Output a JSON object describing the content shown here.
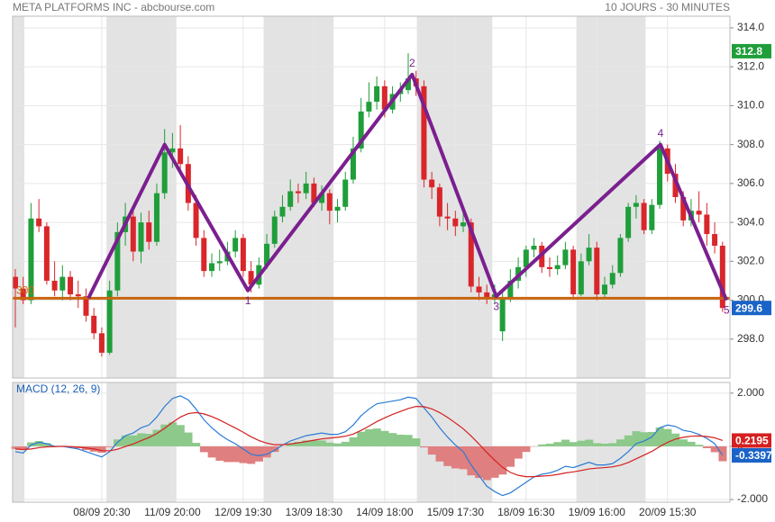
{
  "header": {
    "title": "META PLATFORMS INC - abcbourse.com",
    "period": "10 JOURS - 30 MINUTES"
  },
  "chart_data": [
    {
      "type": "candlestick",
      "up_color": "#1f9e3a",
      "down_color": "#d9262b",
      "grid": true,
      "categories": [
        null,
        null,
        null,
        null,
        null,
        null,
        null,
        null,
        null,
        null,
        null,
        "08/09 20:30",
        null,
        null,
        null,
        null,
        null,
        null,
        null,
        null,
        "11/09 20:00",
        null,
        null,
        null,
        null,
        null,
        null,
        null,
        null,
        "12/09 19:30",
        null,
        null,
        null,
        null,
        null,
        null,
        null,
        null,
        "13/09 18:30",
        null,
        null,
        null,
        null,
        null,
        null,
        null,
        null,
        "14/09 18:00",
        null,
        null,
        null,
        null,
        null,
        null,
        null,
        null,
        "15/09 17:30",
        null,
        null,
        null,
        null,
        null,
        null,
        null,
        null,
        "18/09 16:30",
        null,
        null,
        null,
        null,
        null,
        null,
        null,
        null,
        "19/09 16:00",
        null,
        null,
        null,
        null,
        null,
        null,
        null,
        null,
        "20/09 15:30",
        null,
        null,
        null,
        null,
        null,
        null,
        null
      ],
      "ohlc": [
        [
          301.2,
          301.6,
          298.6,
          300.6
        ],
        [
          300.6,
          301.2,
          299.8,
          300.0
        ],
        [
          300.0,
          305.0,
          299.8,
          304.2
        ],
        [
          304.2,
          305.2,
          303.5,
          303.8
        ],
        [
          303.8,
          304.0,
          300.8,
          301.0
        ],
        [
          301.0,
          302.0,
          300.2,
          300.5
        ],
        [
          300.5,
          301.8,
          300.0,
          301.2
        ],
        [
          301.2,
          301.5,
          300.0,
          300.3
        ],
        [
          300.3,
          301.0,
          299.6,
          300.2
        ],
        [
          300.2,
          300.6,
          298.9,
          299.2
        ],
        [
          299.2,
          299.6,
          298.0,
          298.3
        ],
        [
          298.3,
          298.6,
          297.1,
          297.3
        ],
        [
          297.3,
          301.0,
          297.2,
          300.5
        ],
        [
          300.5,
          304.0,
          300.2,
          303.5
        ],
        [
          303.5,
          305.0,
          302.8,
          304.3
        ],
        [
          304.3,
          304.8,
          302.0,
          302.5
        ],
        [
          302.5,
          304.5,
          301.9,
          304.0
        ],
        [
          304.0,
          304.6,
          302.6,
          303.0
        ],
        [
          303.0,
          306.0,
          302.8,
          305.5
        ],
        [
          305.5,
          308.8,
          305.2,
          307.6
        ],
        [
          307.6,
          308.6,
          306.8,
          307.8
        ],
        [
          307.8,
          309.0,
          306.6,
          307.0
        ],
        [
          307.0,
          307.4,
          304.6,
          305.0
        ],
        [
          305.0,
          305.4,
          302.8,
          303.2
        ],
        [
          303.2,
          303.6,
          301.2,
          301.5
        ],
        [
          301.5,
          302.4,
          301.2,
          301.9
        ],
        [
          301.9,
          302.6,
          301.5,
          302.0
        ],
        [
          302.0,
          303.0,
          301.8,
          302.5
        ],
        [
          302.5,
          303.6,
          302.2,
          303.2
        ],
        [
          303.2,
          303.4,
          301.2,
          301.5
        ],
        [
          301.5,
          302.0,
          300.4,
          300.8
        ],
        [
          300.8,
          302.2,
          300.6,
          301.8
        ],
        [
          301.8,
          303.4,
          301.6,
          302.9
        ],
        [
          302.9,
          304.6,
          302.7,
          304.3
        ],
        [
          304.3,
          305.4,
          304.0,
          304.8
        ],
        [
          304.8,
          306.2,
          304.6,
          305.6
        ],
        [
          305.6,
          306.0,
          305.0,
          305.5
        ],
        [
          305.5,
          306.6,
          305.2,
          306.0
        ],
        [
          306.0,
          306.3,
          304.8,
          305.0
        ],
        [
          305.0,
          305.9,
          304.6,
          305.5
        ],
        [
          305.5,
          305.7,
          303.9,
          304.6
        ],
        [
          304.6,
          305.2,
          304.0,
          304.8
        ],
        [
          304.8,
          306.6,
          304.6,
          306.2
        ],
        [
          306.2,
          308.4,
          306.0,
          307.8
        ],
        [
          307.8,
          310.4,
          307.6,
          309.7
        ],
        [
          309.7,
          311.2,
          309.4,
          310.2
        ],
        [
          310.2,
          311.5,
          309.8,
          311.0
        ],
        [
          311.0,
          311.3,
          309.4,
          309.8
        ],
        [
          309.8,
          311.0,
          309.6,
          310.6
        ],
        [
          310.6,
          311.2,
          310.2,
          310.8
        ],
        [
          310.8,
          312.7,
          310.6,
          311.4
        ],
        [
          311.4,
          311.8,
          310.5,
          311.0
        ],
        [
          311.0,
          311.3,
          305.8,
          306.2
        ],
        [
          306.2,
          306.6,
          305.2,
          305.8
        ],
        [
          305.8,
          306.0,
          303.8,
          304.3
        ],
        [
          304.3,
          305.0,
          303.6,
          304.2
        ],
        [
          304.2,
          304.6,
          303.3,
          303.8
        ],
        [
          303.8,
          304.6,
          303.5,
          304.0
        ],
        [
          304.0,
          304.2,
          300.4,
          300.7
        ],
        [
          300.7,
          301.2,
          300.0,
          300.4
        ],
        [
          300.4,
          300.8,
          299.8,
          300.1
        ],
        [
          300.1,
          300.8,
          299.8,
          300.3
        ],
        [
          298.4,
          300.4,
          297.9,
          300.1
        ],
        [
          300.1,
          301.6,
          299.9,
          301.0
        ],
        [
          301.0,
          302.2,
          300.6,
          301.7
        ],
        [
          301.7,
          302.8,
          301.2,
          302.6
        ],
        [
          302.6,
          303.2,
          302.2,
          302.8
        ],
        [
          302.8,
          303.0,
          301.4,
          301.7
        ],
        [
          301.7,
          302.2,
          301.2,
          301.6
        ],
        [
          301.6,
          302.3,
          301.3,
          301.8
        ],
        [
          301.8,
          303.0,
          301.6,
          302.6
        ],
        [
          302.6,
          302.8,
          300.1,
          300.3
        ],
        [
          300.3,
          302.4,
          300.2,
          302.0
        ],
        [
          302.0,
          303.4,
          301.8,
          302.7
        ],
        [
          302.7,
          303.0,
          300.0,
          300.3
        ],
        [
          300.3,
          301.2,
          300.1,
          300.8
        ],
        [
          300.8,
          301.8,
          300.6,
          301.4
        ],
        [
          301.4,
          303.4,
          301.2,
          303.2
        ],
        [
          303.2,
          305.0,
          303.0,
          304.8
        ],
        [
          304.8,
          305.4,
          304.2,
          305.0
        ],
        [
          305.0,
          305.2,
          303.4,
          303.6
        ],
        [
          303.6,
          305.2,
          303.4,
          304.9
        ],
        [
          304.9,
          308.2,
          304.7,
          307.8
        ],
        [
          307.8,
          308.0,
          306.1,
          306.5
        ],
        [
          306.5,
          307.0,
          305.0,
          305.3
        ],
        [
          305.3,
          305.6,
          303.8,
          304.1
        ],
        [
          304.1,
          305.2,
          303.8,
          304.6
        ],
        [
          304.6,
          305.6,
          304.0,
          304.4
        ],
        [
          304.4,
          305.0,
          302.8,
          303.4
        ],
        [
          303.4,
          304.0,
          302.4,
          302.8
        ],
        [
          302.8,
          303.0,
          299.4,
          299.6
        ]
      ],
      "ylim": [
        296,
        314.6
      ],
      "yticks": [
        {
          "value": 298,
          "label": "298.0"
        },
        {
          "value": 300,
          "label": "300.0"
        },
        {
          "value": 302,
          "label": "302.0"
        },
        {
          "value": 304,
          "label": "304.0"
        },
        {
          "value": 306,
          "label": "306.0"
        },
        {
          "value": 308,
          "label": "308.0"
        },
        {
          "value": 310,
          "label": "310.0"
        },
        {
          "value": 312,
          "label": "312.0"
        },
        {
          "value": 314,
          "label": "314.0"
        }
      ],
      "support": {
        "value": 300.1,
        "label": "300",
        "color": "#c8650f"
      },
      "pattern": {
        "color": "#7b1f8f",
        "points": [
          {
            "x": 9.3,
            "y": 300.1
          },
          {
            "x": 19.0,
            "y": 308.0
          },
          {
            "x": 29.6,
            "y": 300.5,
            "label": "1"
          },
          {
            "x": 50.5,
            "y": 311.6,
            "label": "2"
          },
          {
            "x": 61.2,
            "y": 300.2,
            "label": "3"
          },
          {
            "x": 82.1,
            "y": 308.0,
            "label": "4"
          },
          {
            "x": 90.5,
            "y": 300.0,
            "label": "5"
          }
        ]
      },
      "markers": [
        {
          "value": 312.8,
          "color": "#1f9e3a"
        },
        {
          "value": 299.6,
          "color": "#1a63c7"
        }
      ]
    },
    {
      "type": "macd",
      "title": "MACD (12, 26, 9)",
      "ylim": [
        -2.1,
        2.4
      ],
      "yticks": [
        {
          "value": -2,
          "label": "-2.000"
        },
        0,
        {
          "value": 2,
          "label": "2.000"
        }
      ],
      "series": [
        {
          "color": "#2a7bd6",
          "values": [
            -0.2,
            -0.25,
            0.05,
            0.15,
            0.1,
            0.0,
            0.0,
            -0.05,
            -0.1,
            -0.2,
            -0.3,
            -0.4,
            -0.2,
            0.15,
            0.4,
            0.5,
            0.7,
            0.8,
            1.1,
            1.5,
            1.8,
            1.9,
            1.75,
            1.4,
            1.0,
            0.7,
            0.45,
            0.25,
            0.1,
            -0.1,
            -0.3,
            -0.35,
            -0.3,
            -0.15,
            0.05,
            0.2,
            0.3,
            0.4,
            0.45,
            0.5,
            0.45,
            0.45,
            0.55,
            0.8,
            1.15,
            1.4,
            1.6,
            1.65,
            1.7,
            1.75,
            1.85,
            1.8,
            1.45,
            1.1,
            0.7,
            0.35,
            0.05,
            -0.2,
            -0.7,
            -1.1,
            -1.5,
            -1.7,
            -1.85,
            -1.75,
            -1.55,
            -1.35,
            -1.15,
            -1.05,
            -1.0,
            -0.9,
            -0.75,
            -0.8,
            -0.7,
            -0.6,
            -0.7,
            -0.7,
            -0.65,
            -0.45,
            -0.2,
            0.1,
            0.2,
            0.35,
            0.7,
            0.8,
            0.75,
            0.6,
            0.55,
            0.45,
            0.3,
            0.1,
            -0.3397
          ]
        },
        {
          "color": "#d42020",
          "values": [
            -0.1,
            -0.12,
            -0.1,
            -0.05,
            -0.02,
            -0.01,
            0.0,
            -0.01,
            -0.03,
            -0.06,
            -0.1,
            -0.16,
            -0.17,
            -0.11,
            -0.01,
            0.09,
            0.21,
            0.33,
            0.48,
            0.68,
            0.9,
            1.1,
            1.23,
            1.27,
            1.22,
            1.12,
            0.99,
            0.84,
            0.69,
            0.53,
            0.36,
            0.22,
            0.12,
            0.06,
            0.06,
            0.09,
            0.13,
            0.18,
            0.23,
            0.28,
            0.31,
            0.34,
            0.38,
            0.46,
            0.6,
            0.76,
            0.93,
            1.07,
            1.2,
            1.31,
            1.42,
            1.5,
            1.49,
            1.41,
            1.27,
            1.09,
            0.88,
            0.66,
            0.39,
            0.09,
            -0.23,
            -0.52,
            -0.79,
            -0.98,
            -1.09,
            -1.14,
            -1.14,
            -1.12,
            -1.1,
            -1.06,
            -1.0,
            -0.96,
            -0.91,
            -0.85,
            -0.82,
            -0.8,
            -0.77,
            -0.71,
            -0.61,
            -0.47,
            -0.33,
            -0.19,
            -0.01,
            0.15,
            0.27,
            0.34,
            0.38,
            0.39,
            0.37,
            0.32,
            0.2195
          ]
        }
      ],
      "histogram": {
        "up_color": "#8cc98a",
        "down_color": "#e07f7f",
        "values": [
          -0.1,
          -0.13,
          0.15,
          0.2,
          0.12,
          0.01,
          0.0,
          -0.04,
          -0.07,
          -0.14,
          -0.2,
          -0.24,
          -0.03,
          0.26,
          0.41,
          0.41,
          0.49,
          0.47,
          0.62,
          0.82,
          0.9,
          0.8,
          0.52,
          0.13,
          -0.22,
          -0.42,
          -0.54,
          -0.59,
          -0.59,
          -0.63,
          -0.66,
          -0.57,
          -0.42,
          -0.21,
          -0.01,
          0.11,
          0.17,
          0.22,
          0.22,
          0.22,
          0.14,
          0.11,
          0.17,
          0.34,
          0.55,
          0.64,
          0.67,
          0.58,
          0.5,
          0.44,
          0.43,
          0.3,
          -0.04,
          -0.31,
          -0.57,
          -0.74,
          -0.83,
          -0.86,
          -1.09,
          -1.19,
          -1.27,
          -1.18,
          -1.06,
          -0.77,
          -0.46,
          -0.21,
          -0.01,
          0.07,
          0.1,
          0.16,
          0.25,
          0.16,
          0.21,
          0.25,
          0.12,
          0.1,
          0.12,
          0.26,
          0.41,
          0.57,
          0.53,
          0.54,
          0.71,
          0.65,
          0.48,
          0.26,
          0.17,
          0.06,
          -0.07,
          -0.22,
          -0.56
        ]
      },
      "markers": [
        {
          "value": 0.2195,
          "color": "#d42020"
        },
        {
          "value": -0.3397,
          "color": "#1a63c7"
        }
      ]
    }
  ]
}
